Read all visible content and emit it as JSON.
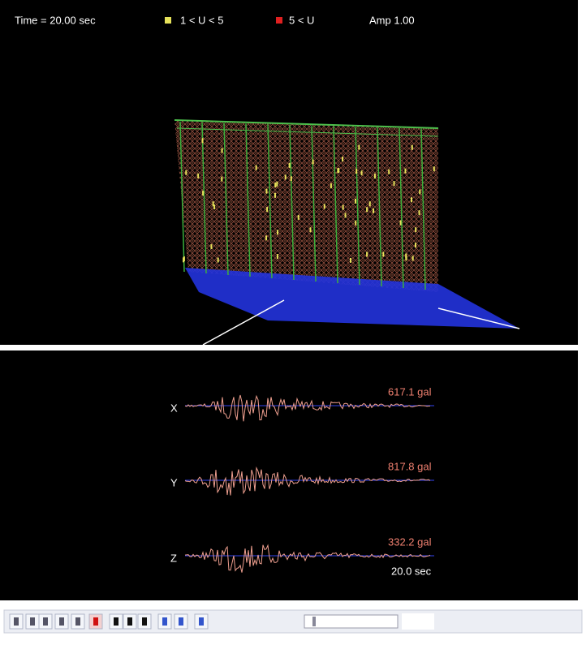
{
  "legend": {
    "time": "Time = 20.00 sec",
    "items": [
      {
        "label": "1 < U < 5",
        "color": "#e6e25a"
      },
      {
        "label": "5 < U",
        "color": "#e02020"
      }
    ],
    "amp": "Amp 1.00"
  },
  "waveforms": [
    {
      "axis": "X",
      "peak": "617.1 gal"
    },
    {
      "axis": "Y",
      "peak": "817.8 gal"
    },
    {
      "axis": "Z",
      "peak": "332.2 gal"
    }
  ],
  "duration": "20.0 sec"
}
